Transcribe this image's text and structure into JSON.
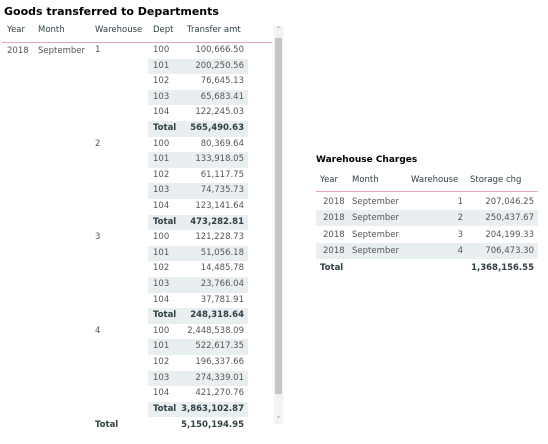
{
  "goods_table": {
    "title": "Goods transferred to Departments",
    "headers": [
      "Year",
      "Month",
      "Warehouse",
      "Dept",
      "Transfer amt"
    ],
    "year": "2018",
    "month": "September",
    "warehouses": [
      {
        "name": "1",
        "rows": [
          [
            "100",
            "100,666.50"
          ],
          [
            "101",
            "200,250.56"
          ],
          [
            "102",
            "76,645.13"
          ],
          [
            "103",
            "65,683.41"
          ],
          [
            "104",
            "122,245.03"
          ]
        ],
        "total_label": "Total",
        "total": "565,490.63"
      },
      {
        "name": "2",
        "rows": [
          [
            "100",
            "80,369.64"
          ],
          [
            "101",
            "133,918.05"
          ],
          [
            "102",
            "61,117.75"
          ],
          [
            "103",
            "74,735.73"
          ],
          [
            "104",
            "123,141.64"
          ]
        ],
        "total_label": "Total",
        "total": "473,282.81"
      },
      {
        "name": "3",
        "rows": [
          [
            "100",
            "121,228.73"
          ],
          [
            "101",
            "51,056.18"
          ],
          [
            "102",
            "14,485.78"
          ],
          [
            "103",
            "23,766.04"
          ],
          [
            "104",
            "37,781.91"
          ]
        ],
        "total_label": "Total",
        "total": "248,318.64"
      },
      {
        "name": "4",
        "rows": [
          [
            "100",
            "2,448,538.09"
          ],
          [
            "101",
            "522,617.35"
          ],
          [
            "102",
            "196,337.66"
          ],
          [
            "103",
            "274,339.01"
          ],
          [
            "104",
            "421,270.76"
          ]
        ],
        "total_label": "Total",
        "total": "3,863,102.87"
      }
    ],
    "total_label": "Total",
    "total": "5,150,194.95"
  },
  "charges_table": {
    "title": "Warehouse Charges",
    "headers": [
      "Year",
      "Month",
      "Warehouse",
      "Storage chg"
    ],
    "rows": [
      [
        "2018",
        "September",
        "1",
        "207,046.25"
      ],
      [
        "2018",
        "September",
        "2",
        "250,437.67"
      ],
      [
        "2018",
        "September",
        "3",
        "204,199.33"
      ],
      [
        "2018",
        "September",
        "4",
        "706,473.30"
      ]
    ],
    "total_label": "Total",
    "total": "1,368,156.55"
  }
}
